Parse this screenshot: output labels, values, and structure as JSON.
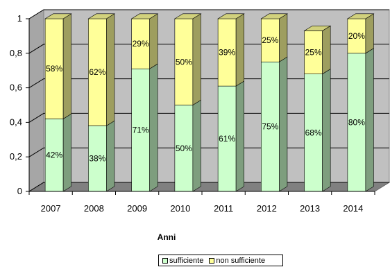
{
  "chart_data": {
    "type": "bar",
    "stacked": true,
    "style": "3d",
    "categories": [
      "2007",
      "2008",
      "2009",
      "2010",
      "2011",
      "2012",
      "2013",
      "2014"
    ],
    "series": [
      {
        "name": "sufficiente",
        "values": [
          0.42,
          0.38,
          0.71,
          0.5,
          0.61,
          0.75,
          0.68,
          0.8
        ],
        "labels": [
          "42%",
          "38%",
          "71%",
          "50%",
          "61%",
          "75%",
          "68%",
          "80%"
        ],
        "color": "#ccffcc"
      },
      {
        "name": "non sufficiente",
        "values": [
          0.58,
          0.62,
          0.29,
          0.5,
          0.39,
          0.25,
          0.25,
          0.2
        ],
        "labels": [
          "58%",
          "62%",
          "29%",
          "50%",
          "39%",
          "25%",
          "25%",
          "20%"
        ],
        "color": "#ffff99"
      }
    ],
    "xlabel": "Anni",
    "ylabel": "",
    "ylim": [
      0,
      1
    ],
    "yticks": [
      "0",
      "0,2",
      "0,4",
      "0,6",
      "0,8",
      "1"
    ],
    "grid": true,
    "legend_position": "bottom"
  }
}
